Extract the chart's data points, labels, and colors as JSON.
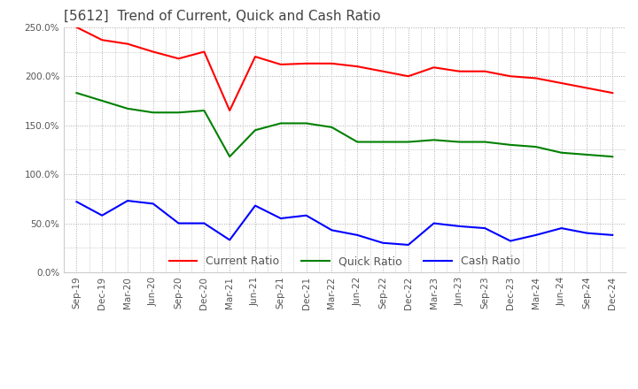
{
  "title": "[5612]  Trend of Current, Quick and Cash Ratio",
  "x_labels": [
    "Sep-19",
    "Dec-19",
    "Mar-20",
    "Jun-20",
    "Sep-20",
    "Dec-20",
    "Mar-21",
    "Jun-21",
    "Sep-21",
    "Dec-21",
    "Mar-22",
    "Jun-22",
    "Sep-22",
    "Dec-22",
    "Mar-23",
    "Jun-23",
    "Sep-23",
    "Dec-23",
    "Mar-24",
    "Jun-24",
    "Sep-24",
    "Dec-24"
  ],
  "current_ratio": [
    250.0,
    237.0,
    233.0,
    225.0,
    218.0,
    225.0,
    165.0,
    220.0,
    212.0,
    213.0,
    213.0,
    210.0,
    205.0,
    200.0,
    209.0,
    205.0,
    205.0,
    200.0,
    198.0,
    193.0,
    188.0,
    183.0
  ],
  "quick_ratio": [
    183.0,
    175.0,
    167.0,
    163.0,
    163.0,
    165.0,
    118.0,
    145.0,
    152.0,
    152.0,
    148.0,
    133.0,
    133.0,
    133.0,
    135.0,
    133.0,
    133.0,
    130.0,
    128.0,
    122.0,
    120.0,
    118.0
  ],
  "cash_ratio": [
    72.0,
    58.0,
    73.0,
    70.0,
    50.0,
    50.0,
    33.0,
    68.0,
    55.0,
    58.0,
    43.0,
    38.0,
    30.0,
    28.0,
    50.0,
    47.0,
    45.0,
    32.0,
    38.0,
    45.0,
    40.0,
    38.0
  ],
  "ylim": [
    0,
    250
  ],
  "yticks": [
    0,
    50,
    100,
    150,
    200,
    250
  ],
  "current_color": "#FF0000",
  "quick_color": "#008000",
  "cash_color": "#0000FF",
  "background_color": "#FFFFFF",
  "grid_color": "#AAAAAA",
  "title_fontsize": 11,
  "tick_fontsize": 7.5,
  "legend_fontsize": 9
}
